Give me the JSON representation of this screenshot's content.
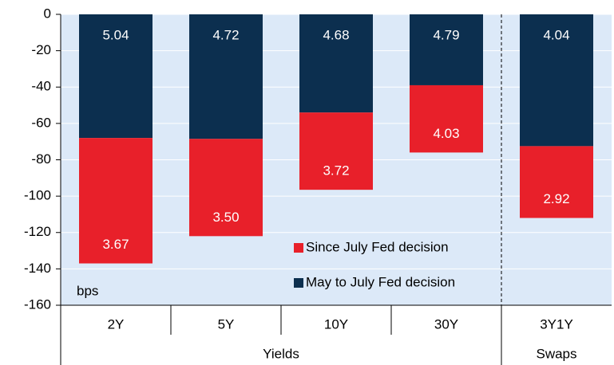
{
  "chart_data": {
    "type": "bar",
    "stacked": true,
    "categories": [
      "2Y",
      "5Y",
      "10Y",
      "30Y",
      "3Y1Y"
    ],
    "groups": [
      {
        "name": "Yields",
        "size": 4
      },
      {
        "name": "Swaps",
        "size": 1
      }
    ],
    "series": [
      {
        "name": "May to July Fed decision",
        "color": "#0c2f4f",
        "values": [
          -68,
          -68.5,
          -54,
          -39,
          -72.5
        ],
        "annotations": [
          "5.04",
          "4.72",
          "4.68",
          "4.79",
          "4.04"
        ]
      },
      {
        "name": "Since July Fed decision",
        "color": "#e8202a",
        "values": [
          -69,
          -53.5,
          -42.5,
          -37,
          -39.5
        ],
        "annotations": [
          "3.67",
          "3.50",
          "3.72",
          "4.03",
          "2.92"
        ]
      }
    ],
    "ylim": [
      -160,
      0
    ],
    "yticks": [
      0,
      -20,
      -40,
      -60,
      -80,
      -100,
      -120,
      -140,
      -160
    ],
    "y_unit_label": "bps",
    "grid": true,
    "background": "#dce9f8"
  }
}
